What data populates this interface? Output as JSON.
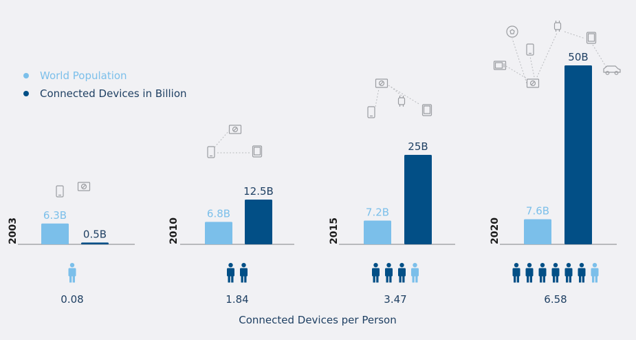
{
  "colors": {
    "world_population": "#7bbfea",
    "connected_devices": "#024f86",
    "person_partial": "#7bbfea",
    "text_dark": "#1e3f62",
    "baseline": "#7e8185",
    "icon_gray": "#9a9ca0"
  },
  "legend": {
    "world_population_label": "World Population",
    "connected_devices_label": "Connected Devices in Billion"
  },
  "footer_label": "Connected Devices per Person",
  "chart_data": {
    "type": "bar",
    "categories": [
      "2003",
      "2010",
      "2015",
      "2020"
    ],
    "series": [
      {
        "name": "World Population",
        "values": [
          6.3,
          6.8,
          7.2,
          7.6
        ],
        "labels": [
          "6.3B",
          "6.8B",
          "7.2B",
          "7.6B"
        ]
      },
      {
        "name": "Connected Devices in Billion",
        "values": [
          0.5,
          12.5,
          25,
          50
        ],
        "labels": [
          "0.5B",
          "12.5B",
          "25B",
          "50B"
        ]
      }
    ],
    "devices_per_person": [
      "0.08",
      "1.84",
      "3.47",
      "6.58"
    ],
    "person_icons": [
      {
        "full": 0,
        "partial": 1
      },
      {
        "full": 2,
        "partial": 0
      },
      {
        "full": 3,
        "partial": 1
      },
      {
        "full": 6,
        "partial": 1
      }
    ],
    "device_icons": [
      [
        "smartphone-icon",
        "pc-icon"
      ],
      [
        "pc-icon",
        "smartphone-icon",
        "tablet-icon"
      ],
      [
        "pc-icon",
        "smartphone-icon",
        "smartwatch-icon",
        "tablet-icon"
      ],
      [
        "ball-icon",
        "smartphone-icon",
        "smartwatch-icon",
        "tablet-icon",
        "tv-icon",
        "pc-icon",
        "car-icon"
      ]
    ],
    "xlabel": "Connected Devices per Person",
    "ylabel": ""
  }
}
